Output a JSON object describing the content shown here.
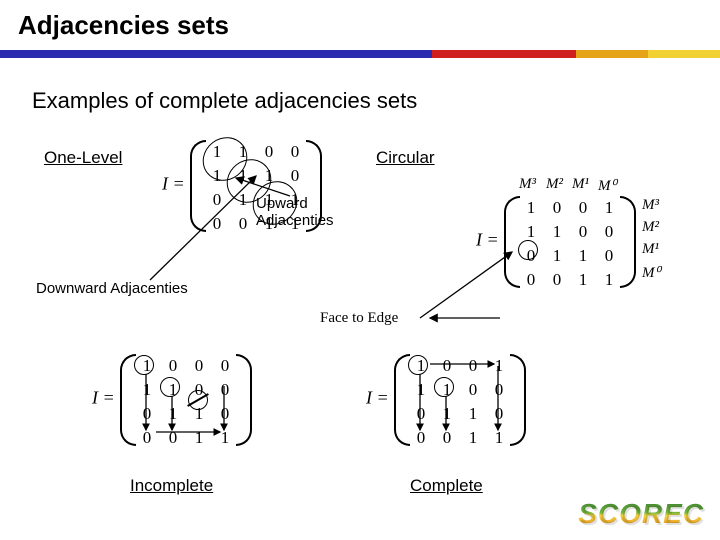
{
  "title": "Adjacencies sets",
  "subtitle": "Examples of complete adjacencies sets",
  "stripe_colors": [
    "#2b2bb0",
    "#2b2bb0",
    "#2b2bb0",
    "#2b2bb0",
    "#2b2bb0",
    "#2b2bb0",
    "#d01f1f",
    "#d01f1f",
    "#e6a518",
    "#f2d233"
  ],
  "labels": {
    "one_level": "One-Level",
    "circular": "Circular",
    "upward": "Upward Adjacenties",
    "downward": "Downward Adjacenties",
    "face_to_edge": "Face to Edge",
    "incomplete": "Incomplete",
    "complete": "Complete"
  },
  "matrices": {
    "one_level": {
      "rows": [
        [
          "1",
          "1",
          "0",
          "0"
        ],
        [
          "1",
          "1",
          "1",
          "0"
        ],
        [
          "0",
          "1",
          "1",
          "1"
        ],
        [
          "0",
          "0",
          "1",
          "1"
        ]
      ]
    },
    "circular": {
      "rows": [
        [
          "1",
          "0",
          "0",
          "1"
        ],
        [
          "1",
          "1",
          "0",
          "0"
        ],
        [
          "0",
          "1",
          "1",
          "0"
        ],
        [
          "0",
          "0",
          "1",
          "1"
        ]
      ],
      "row_labels": [
        "M³",
        "M²",
        "M¹",
        "M⁰"
      ],
      "col_labels": [
        "M³",
        "M²",
        "M¹",
        "M⁰"
      ]
    },
    "incomplete": {
      "rows": [
        [
          "1",
          "0",
          "0",
          "0"
        ],
        [
          "1",
          "1",
          "0",
          "0"
        ],
        [
          "0",
          "1",
          "1",
          "0"
        ],
        [
          "0",
          "0",
          "1",
          "1"
        ]
      ]
    },
    "complete": {
      "rows": [
        [
          "1",
          "0",
          "0",
          "1"
        ],
        [
          "1",
          "1",
          "0",
          "0"
        ],
        [
          "0",
          "1",
          "1",
          "0"
        ],
        [
          "0",
          "0",
          "1",
          "1"
        ]
      ]
    }
  },
  "logo": "SCOREC"
}
